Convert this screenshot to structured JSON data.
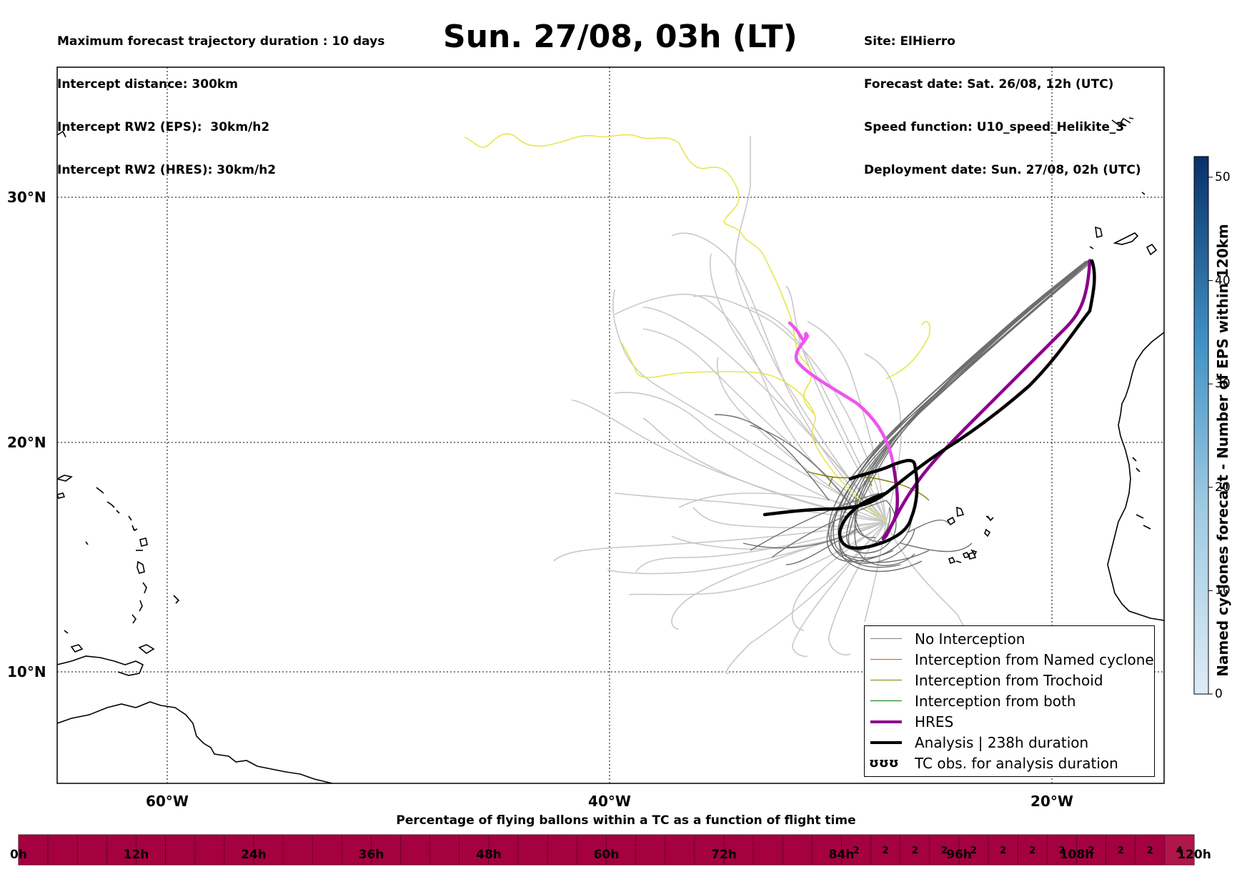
{
  "header": {
    "left_lines": [
      "Maximum forecast trajectory duration : 10 days",
      "Intercept distance: 300km",
      "Intercept RW2 (EPS):  30km/h2",
      "Intercept RW2 (HRES): 30km/h2"
    ],
    "title": "Sun. 27/08, 03h (LT)",
    "right_lines": [
      "Site: ElHierro",
      "Forecast date: Sat. 26/08, 12h (UTC)",
      "Speed function: U10_speed_Helikite_3",
      "Deployment date: Sun. 27/08, 02h (UTC)"
    ]
  },
  "map": {
    "lat_labels": [
      "30°N",
      "20°N",
      "10°N"
    ],
    "lon_labels": [
      "60°W",
      "40°W",
      "20°W"
    ],
    "colors": {
      "eps_no_interception": "#c8c8c8",
      "eps_dark": "#6e6e6e",
      "trochoid": "#808000",
      "yellow_track": "#e6e650",
      "hres": "#8b008b",
      "hres_early": "#ee55ee",
      "analysis": "#000000",
      "coast": "#000000"
    }
  },
  "legend": {
    "items": [
      {
        "label": "No Interception",
        "color": "#808080",
        "style": "thin"
      },
      {
        "label": "Interception from Named cyclone",
        "color": "#ff4500",
        "style": "thin"
      },
      {
        "label": "Interception from Trochoid",
        "color": "#808000",
        "style": "thin"
      },
      {
        "label": "Interception from both",
        "color": "#008000",
        "style": "thin"
      },
      {
        "label": "HRES",
        "color": "#8b008b",
        "style": "thick"
      },
      {
        "label": "Analysis | 238h duration",
        "color": "#000000",
        "style": "thick"
      },
      {
        "label": "TC obs. for analysis duration",
        "color": "#000000",
        "style": "symbol",
        "symbol": "ᴎᴎᴎ"
      }
    ]
  },
  "colorbar": {
    "title": "Named cyclones forecast - Number of EPS within 120km",
    "ticks": [
      "0",
      "10",
      "20",
      "30",
      "40",
      "50"
    ],
    "max": 52,
    "color_low": "#deebf7",
    "color_high": "#08306b"
  },
  "timebar": {
    "title": "Percentage of flying ballons within a TC as a function of flight time",
    "ticks": [
      "0h",
      "12h",
      "24h",
      "36h",
      "48h",
      "60h",
      "72h",
      "84h",
      "96h",
      "108h",
      "120h"
    ],
    "main_color": "#a50040",
    "light_color": "#b0164b",
    "segment_values": [
      "2",
      "2",
      "2",
      "2",
      "2",
      "2",
      "2",
      "2",
      "2",
      "2",
      "2",
      "4"
    ]
  }
}
